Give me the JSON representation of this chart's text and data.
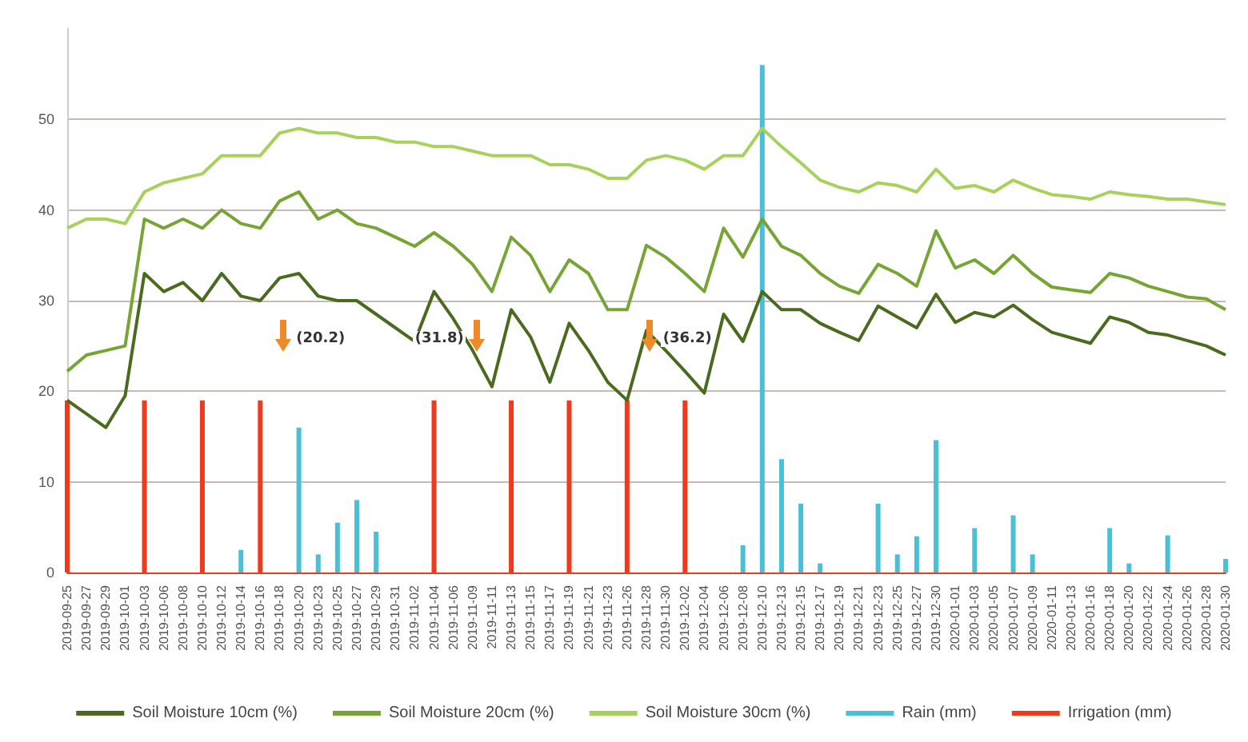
{
  "chart_data": {
    "type": "line",
    "categories": [
      "2019-09-25",
      "2019-09-27",
      "2019-09-29",
      "2019-10-01",
      "2019-10-03",
      "2019-10-06",
      "2019-10-08",
      "2019-10-10",
      "2019-10-12",
      "2019-10-14",
      "2019-10-16",
      "2019-10-18",
      "2019-10-20",
      "2019-10-23",
      "2019-10-25",
      "2019-10-27",
      "2019-10-29",
      "2019-10-31",
      "2019-11-02",
      "2019-11-04",
      "2019-11-06",
      "2019-11-09",
      "2019-11-11",
      "2019-11-13",
      "2019-11-15",
      "2019-11-17",
      "2019-11-19",
      "2019-11-21",
      "2019-11-23",
      "2019-11-26",
      "2019-11-28",
      "2019-11-30",
      "2019-12-02",
      "2019-12-04",
      "2019-12-06",
      "2019-12-08",
      "2019-12-10",
      "2019-12-13",
      "2019-12-15",
      "2019-12-17",
      "2019-12-19",
      "2019-12-21",
      "2019-12-23",
      "2019-12-25",
      "2019-12-27",
      "2019-12-30",
      "2020-01-01",
      "2020-01-03",
      "2020-01-05",
      "2020-01-07",
      "2020-01-09",
      "2020-01-11",
      "2020-01-13",
      "2020-01-16",
      "2020-01-18",
      "2020-01-20",
      "2020-01-22",
      "2020-01-24",
      "2020-01-26",
      "2020-01-28",
      "2020-01-30"
    ],
    "series": [
      {
        "name": "Soil Moisture 10cm (%)",
        "color": "#4a6b1e",
        "values": [
          19,
          17.5,
          16,
          19.5,
          33,
          31,
          32,
          30,
          33,
          30.5,
          30,
          32.5,
          33,
          30.5,
          30,
          30,
          28.5,
          27,
          25.5,
          31,
          28,
          24.5,
          20.5,
          29,
          26,
          21,
          27.5,
          24.5,
          21,
          19,
          26.7,
          24.5,
          22.2,
          19.8,
          28.5,
          25.5,
          31,
          29,
          29,
          27.5,
          26.5,
          25.6,
          29.4,
          28.2,
          27,
          30.7,
          27.6,
          28.7,
          28.2,
          29.5,
          27.9,
          26.5,
          25.9,
          25.3,
          28.2,
          27.6,
          26.5,
          26.2,
          25.6,
          25,
          24
        ]
      },
      {
        "name": "Soil Moisture 20cm (%)",
        "color": "#76a533",
        "values": [
          22.2,
          24,
          24.5,
          25,
          39,
          38,
          39,
          38,
          40,
          38.5,
          38,
          41,
          42,
          39,
          40,
          38.5,
          38,
          37,
          36,
          37.5,
          36,
          34,
          31,
          37,
          35,
          31,
          34.5,
          33,
          29,
          29,
          36.1,
          34.8,
          33,
          31,
          38,
          34.8,
          39,
          36,
          35,
          33,
          31.6,
          30.8,
          34,
          33,
          31.6,
          37.7,
          33.6,
          34.5,
          33,
          35,
          33,
          31.5,
          31.2,
          30.9,
          33,
          32.5,
          31.6,
          31,
          30.4,
          30.2,
          29
        ]
      },
      {
        "name": "Soil Moisture 30cm (%)",
        "color": "#a6d15a",
        "values": [
          38,
          39,
          39,
          38.5,
          42,
          43,
          43.5,
          44,
          46,
          46,
          46,
          48.5,
          49,
          48.5,
          48.5,
          48,
          48,
          47.5,
          47.5,
          47,
          47,
          46.5,
          46,
          46,
          46,
          45,
          45,
          44.5,
          43.5,
          43.5,
          45.5,
          46,
          45.5,
          44.5,
          46,
          46,
          49,
          47,
          45.2,
          43.3,
          42.5,
          42,
          43,
          42.7,
          42,
          44.5,
          42.4,
          42.7,
          42,
          43.3,
          42.4,
          41.7,
          41.5,
          41.2,
          42,
          41.7,
          41.5,
          41.2,
          41.2,
          40.9,
          40.6
        ]
      },
      {
        "name": "Rain (mm)",
        "type": "bar",
        "color": "#4bbfd6",
        "values": [
          0,
          0,
          0,
          0,
          0,
          0,
          0,
          0,
          0,
          2.5,
          0,
          0,
          16,
          2,
          5.5,
          8,
          4.5,
          0,
          0,
          0,
          0,
          0,
          0,
          0,
          0,
          0,
          0,
          0,
          0,
          0,
          0,
          0,
          0,
          0,
          0,
          3,
          56,
          12.5,
          7.6,
          1,
          0,
          0,
          7.6,
          2,
          4,
          14.6,
          0,
          4.9,
          0,
          6.3,
          2,
          0,
          0,
          0,
          4.9,
          1,
          0,
          4.1,
          0,
          0,
          1.5
        ]
      },
      {
        "name": "Irrigation (mm)",
        "type": "bar",
        "color": "#f03a1e",
        "values": [
          19,
          null,
          null,
          null,
          19,
          null,
          null,
          19,
          null,
          null,
          19,
          null,
          null,
          null,
          null,
          null,
          null,
          null,
          null,
          19,
          null,
          null,
          null,
          19,
          null,
          null,
          19,
          null,
          null,
          19,
          null,
          null,
          19,
          null,
          null,
          null,
          null,
          null,
          null,
          null,
          null,
          null,
          null,
          null,
          null,
          null,
          null,
          null,
          null,
          null,
          null,
          null,
          null,
          null,
          null,
          null,
          null,
          null,
          null,
          null,
          null
        ]
      }
    ],
    "ylim": [
      0,
      60
    ],
    "yticks": [
      0,
      10,
      20,
      30,
      40,
      50
    ],
    "grid": "y",
    "legend": "bottom",
    "marker": "none",
    "annotations": [
      "(20.2)",
      "(31.8)",
      "(36.2)"
    ]
  }
}
